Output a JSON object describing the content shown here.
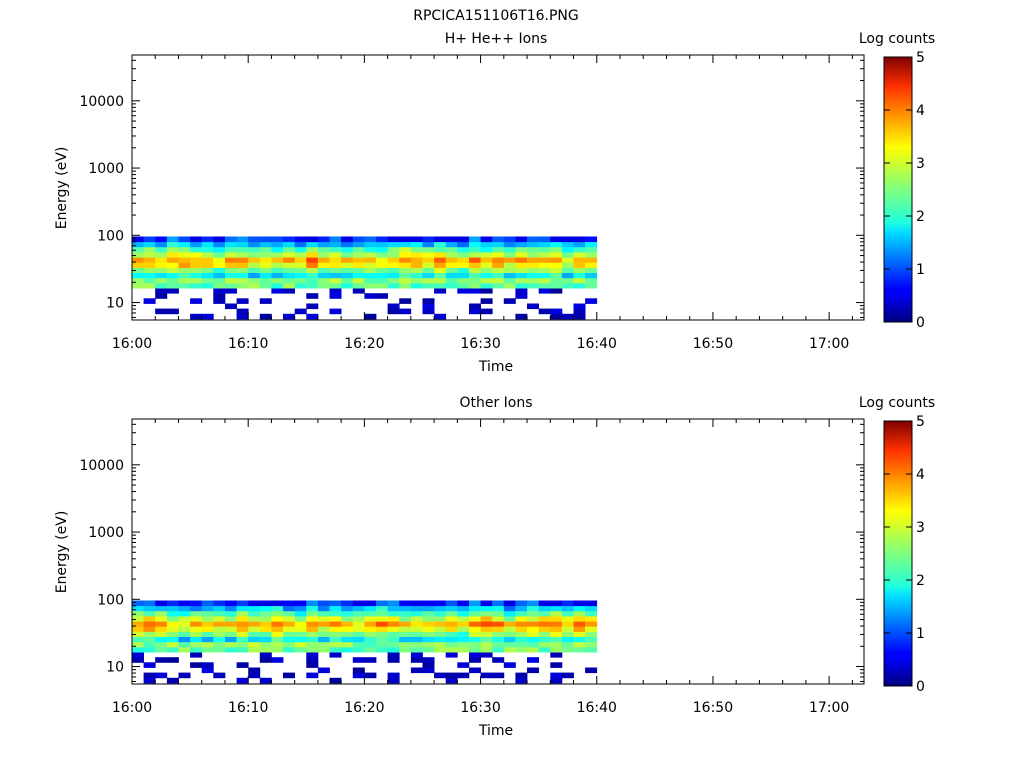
{
  "figure_title": "RPCICA151106T16.PNG",
  "colorbar": {
    "label": "Log counts",
    "min": 0,
    "max": 5,
    "ticks": [
      "0",
      "1",
      "2",
      "3",
      "4",
      "5"
    ],
    "colormap": "jet"
  },
  "chart_data": [
    {
      "type": "heatmap",
      "title": "H+ He++ Ions",
      "xlabel": "Time",
      "ylabel": "Energy (eV)",
      "y_scale": "log",
      "xlim": [
        "16:00",
        "17:03"
      ],
      "ylim": [
        5.5,
        48000
      ],
      "x_ticks": [
        "16:00",
        "16:10",
        "16:20",
        "16:30",
        "16:40",
        "16:50",
        "17:00"
      ],
      "y_ticks": [
        "10",
        "100",
        "1000",
        "10000"
      ],
      "data_time_range": [
        "16:00",
        "16:40"
      ],
      "data_energy_range": [
        5.7,
        96
      ],
      "colorbar_label": "Log counts",
      "colorbar_range": [
        0,
        5
      ],
      "description_of_values": "Energy bins 5.7-96 eV: counts near log 3-3.8 in 30-60 eV band, cyan/blue at ~90 eV and ~20 eV, sparse ~0 counts below 20 eV"
    },
    {
      "type": "heatmap",
      "title": "Other Ions",
      "xlabel": "Time",
      "ylabel": "Energy (eV)",
      "y_scale": "log",
      "xlim": [
        "16:00",
        "17:03"
      ],
      "ylim": [
        5.5,
        48000
      ],
      "x_ticks": [
        "16:00",
        "16:10",
        "16:20",
        "16:30",
        "16:40",
        "16:50",
        "17:00"
      ],
      "y_ticks": [
        "10",
        "100",
        "1000",
        "10000"
      ],
      "data_time_range": [
        "16:00",
        "16:40"
      ],
      "data_energy_range": [
        5.7,
        96
      ],
      "colorbar_label": "Log counts",
      "colorbar_range": [
        0,
        5
      ],
      "description_of_values": "Energy bins 5.7-96 eV: counts near log 3-4 in 30-60 eV band, cyan/blue at ~90 eV and ~20 eV, sparse ~0 counts below 20 eV"
    }
  ]
}
